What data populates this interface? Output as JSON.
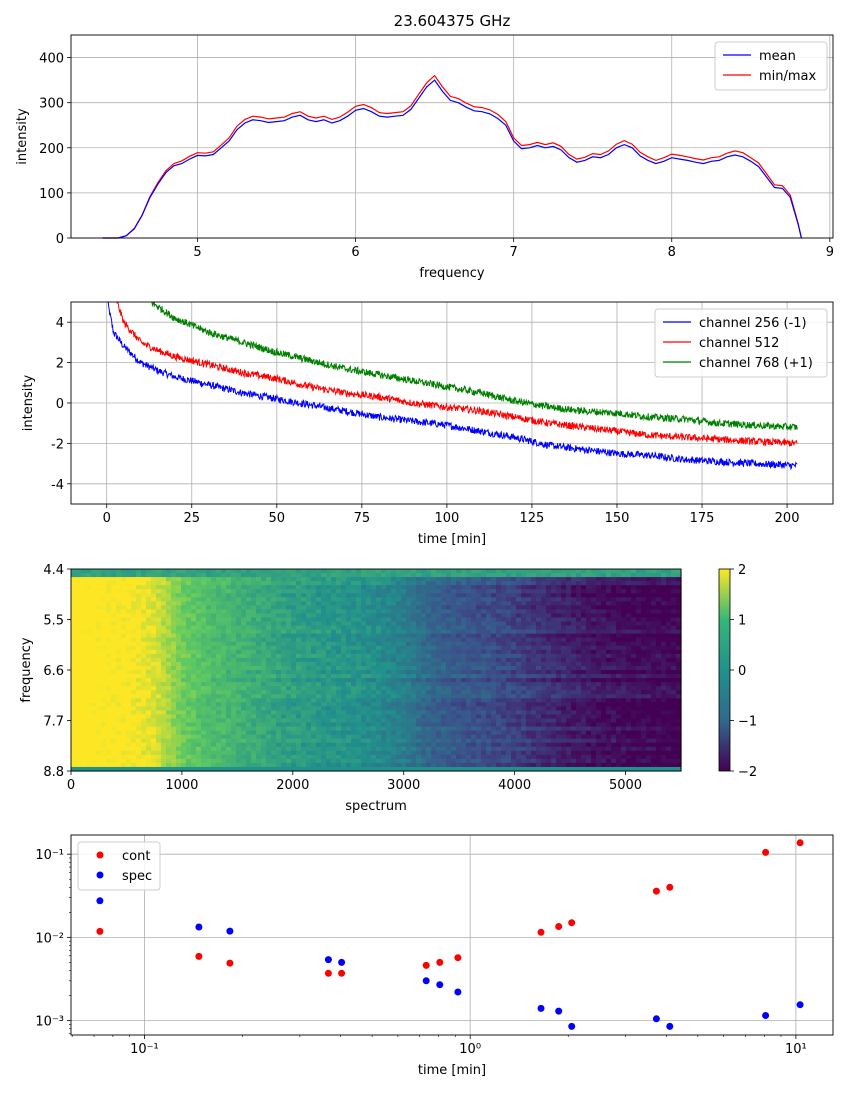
{
  "figure_title": "23.604375 GHz",
  "chart_data": [
    {
      "type": "line",
      "title": "23.604375 GHz",
      "xlabel": "frequency",
      "ylabel": "intensity",
      "xlim": [
        4.2,
        9.02
      ],
      "ylim": [
        0,
        450
      ],
      "xticks": [
        5,
        6,
        7,
        8,
        9
      ],
      "yticks": [
        0,
        100,
        200,
        300,
        400
      ],
      "grid": true,
      "legend_position": "top-right",
      "series": [
        {
          "name": "mean",
          "color": "#0000ff",
          "x": [
            4.4,
            4.5,
            4.55,
            4.6,
            4.65,
            4.7,
            4.75,
            4.8,
            4.85,
            4.9,
            4.95,
            5.0,
            5.05,
            5.1,
            5.15,
            5.2,
            5.25,
            5.3,
            5.35,
            5.4,
            5.45,
            5.5,
            5.55,
            5.6,
            5.65,
            5.7,
            5.75,
            5.8,
            5.85,
            5.9,
            5.95,
            6.0,
            6.05,
            6.1,
            6.15,
            6.2,
            6.25,
            6.3,
            6.35,
            6.4,
            6.45,
            6.5,
            6.55,
            6.6,
            6.65,
            6.7,
            6.75,
            6.8,
            6.85,
            6.9,
            6.95,
            7.0,
            7.05,
            7.1,
            7.15,
            7.2,
            7.25,
            7.3,
            7.35,
            7.4,
            7.45,
            7.5,
            7.55,
            7.6,
            7.65,
            7.7,
            7.75,
            7.8,
            7.85,
            7.9,
            7.95,
            8.0,
            8.05,
            8.1,
            8.15,
            8.2,
            8.25,
            8.3,
            8.35,
            8.4,
            8.45,
            8.5,
            8.55,
            8.6,
            8.65,
            8.7,
            8.75,
            8.8,
            8.82
          ],
          "values": [
            0,
            0,
            5,
            20,
            50,
            90,
            120,
            145,
            160,
            165,
            175,
            183,
            182,
            185,
            200,
            215,
            240,
            255,
            262,
            260,
            256,
            258,
            260,
            268,
            272,
            262,
            258,
            262,
            255,
            260,
            270,
            283,
            287,
            280,
            270,
            268,
            270,
            272,
            285,
            310,
            335,
            350,
            325,
            305,
            300,
            290,
            282,
            280,
            275,
            265,
            250,
            215,
            198,
            200,
            205,
            200,
            203,
            195,
            178,
            168,
            172,
            180,
            178,
            185,
            200,
            207,
            200,
            182,
            172,
            165,
            170,
            178,
            175,
            172,
            168,
            165,
            170,
            172,
            180,
            184,
            180,
            170,
            158,
            135,
            112,
            110,
            90,
            30,
            0
          ]
        },
        {
          "name": "min/max",
          "color": "#ff0000",
          "x": [
            4.4,
            4.5,
            4.55,
            4.6,
            4.65,
            4.7,
            4.75,
            4.8,
            4.85,
            4.9,
            4.95,
            5.0,
            5.05,
            5.1,
            5.15,
            5.2,
            5.25,
            5.3,
            5.35,
            5.4,
            5.45,
            5.5,
            5.55,
            5.6,
            5.65,
            5.7,
            5.75,
            5.8,
            5.85,
            5.9,
            5.95,
            6.0,
            6.05,
            6.1,
            6.15,
            6.2,
            6.25,
            6.3,
            6.35,
            6.4,
            6.45,
            6.5,
            6.55,
            6.6,
            6.65,
            6.7,
            6.75,
            6.8,
            6.85,
            6.9,
            6.95,
            7.0,
            7.05,
            7.1,
            7.15,
            7.2,
            7.25,
            7.3,
            7.35,
            7.4,
            7.45,
            7.5,
            7.55,
            7.6,
            7.65,
            7.7,
            7.75,
            7.8,
            7.85,
            7.9,
            7.95,
            8.0,
            8.05,
            8.1,
            8.15,
            8.2,
            8.25,
            8.3,
            8.35,
            8.4,
            8.45,
            8.5,
            8.55,
            8.6,
            8.65,
            8.7,
            8.75,
            8.8,
            8.82
          ],
          "values": [
            0,
            0,
            5,
            21,
            51,
            92,
            123,
            149,
            165,
            171,
            181,
            189,
            188,
            191,
            206,
            222,
            248,
            263,
            270,
            268,
            264,
            266,
            268,
            276,
            280,
            270,
            266,
            270,
            263,
            268,
            279,
            292,
            296,
            289,
            278,
            276,
            278,
            280,
            293,
            319,
            344,
            360,
            335,
            314,
            309,
            299,
            291,
            289,
            284,
            274,
            258,
            222,
            205,
            207,
            212,
            207,
            211,
            203,
            185,
            175,
            179,
            187,
            185,
            193,
            208,
            216,
            208,
            190,
            180,
            172,
            178,
            186,
            183,
            180,
            176,
            173,
            178,
            180,
            188,
            193,
            189,
            178,
            166,
            142,
            118,
            116,
            95,
            32,
            0
          ]
        }
      ]
    },
    {
      "type": "line",
      "xlabel": "time [min]",
      "ylabel": "intensity",
      "xlim": [
        -10.5,
        213.5
      ],
      "ylim": [
        -5,
        5
      ],
      "xticks": [
        0,
        25,
        50,
        75,
        100,
        125,
        150,
        175,
        200
      ],
      "yticks": [
        -4,
        -2,
        0,
        2,
        4
      ],
      "grid": true,
      "legend_position": "top-right",
      "noise_amplitude": 0.35,
      "series": [
        {
          "name": "channel 256 (-1)",
          "color": "#0000ff",
          "x": [
            0,
            2,
            5,
            10,
            15,
            20,
            30,
            40,
            50,
            60,
            70,
            80,
            90,
            100,
            110,
            120,
            130,
            140,
            150,
            160,
            170,
            180,
            190,
            203
          ],
          "values": [
            5.2,
            3.5,
            2.8,
            2.0,
            1.6,
            1.3,
            0.9,
            0.5,
            0.2,
            -0.1,
            -0.4,
            -0.7,
            -0.9,
            -1.1,
            -1.4,
            -1.7,
            -2.1,
            -2.3,
            -2.5,
            -2.6,
            -2.8,
            -2.9,
            -3.0,
            -3.1
          ]
        },
        {
          "name": "channel 512",
          "color": "#ff0000",
          "x": [
            3,
            5,
            10,
            15,
            20,
            30,
            40,
            50,
            60,
            70,
            80,
            90,
            100,
            110,
            120,
            130,
            140,
            150,
            160,
            170,
            180,
            190,
            203
          ],
          "values": [
            5.0,
            4.0,
            3.0,
            2.6,
            2.3,
            1.9,
            1.5,
            1.2,
            0.8,
            0.5,
            0.3,
            0.0,
            -0.2,
            -0.4,
            -0.7,
            -1.0,
            -1.2,
            -1.4,
            -1.6,
            -1.7,
            -1.8,
            -1.9,
            -2.0
          ]
        },
        {
          "name": "channel 768 (+1)",
          "color": "#008000",
          "x": [
            13,
            20,
            30,
            40,
            50,
            60,
            70,
            80,
            90,
            100,
            110,
            120,
            130,
            140,
            150,
            160,
            170,
            180,
            190,
            203
          ],
          "values": [
            5.0,
            4.2,
            3.5,
            3.0,
            2.5,
            2.1,
            1.7,
            1.4,
            1.1,
            0.8,
            0.5,
            0.1,
            -0.2,
            -0.4,
            -0.5,
            -0.7,
            -0.8,
            -1.0,
            -1.1,
            -1.2
          ]
        }
      ]
    },
    {
      "type": "heatmap",
      "xlabel": "spectrum",
      "ylabel": "frequency",
      "xlim": [
        0,
        5500
      ],
      "ylim": [
        8.8,
        4.4
      ],
      "xticks": [
        0,
        1000,
        2000,
        3000,
        4000,
        5000
      ],
      "yticks": [
        4.4,
        5.5,
        6.6,
        7.7,
        8.8
      ],
      "ytick_labels": [
        "4.4",
        "5.5",
        "6.6",
        "7.7",
        "8.8"
      ],
      "colormap": "viridis",
      "clim": [
        -2,
        2
      ],
      "colorbar_ticks": [
        2,
        1,
        0,
        -1,
        -2
      ],
      "colorbar_tick_labels": [
        "2",
        "1",
        "0",
        "−1",
        "−2"
      ],
      "colorbar_colors": [
        "#fde725",
        "#35b779",
        "#21918c",
        "#31688e",
        "#440154"
      ],
      "x_values": [
        0,
        250,
        500,
        750,
        1000,
        1250,
        1500,
        1750,
        2000,
        2250,
        2500,
        2750,
        3000,
        3250,
        3500,
        3750,
        4000,
        4250,
        4500,
        4750,
        5000,
        5250,
        5500
      ],
      "column_values": [
        2.2,
        2.1,
        2.05,
        1.8,
        1.1,
        0.8,
        0.6,
        0.4,
        0.25,
        0.15,
        0.05,
        -0.05,
        -0.3,
        -0.7,
        -0.9,
        -1.0,
        -1.2,
        -1.4,
        -1.6,
        -1.75,
        -1.85,
        -1.9,
        -1.95
      ],
      "edge_band_value": 0.3
    },
    {
      "type": "scatter",
      "xlabel": "time [min]",
      "xscale": "log",
      "yscale": "log",
      "xlim": [
        0.0595,
        13.0
      ],
      "ylim": [
        0.00067,
        0.17
      ],
      "xticks": [
        0.1,
        1,
        10
      ],
      "xtick_labels": [
        "10⁻¹",
        "10⁰",
        "10¹"
      ],
      "yticks": [
        0.001,
        0.01,
        0.1
      ],
      "ytick_labels": [
        "10⁻³",
        "10⁻²",
        "10⁻¹"
      ],
      "grid": true,
      "legend_position": "top-left",
      "series": [
        {
          "name": "cont",
          "color": "#ff0000",
          "x": [
            0.073,
            0.147,
            0.183,
            0.367,
            0.403,
            0.733,
            0.807,
            0.917,
            1.65,
            1.87,
            2.05,
            3.73,
            4.1,
            8.07,
            10.3
          ],
          "values": [
            0.0118,
            0.0059,
            0.0049,
            0.0037,
            0.0037,
            0.0046,
            0.005,
            0.0057,
            0.0115,
            0.0135,
            0.015,
            0.036,
            0.04,
            0.105,
            0.137
          ]
        },
        {
          "name": "spec",
          "color": "#0000ff",
          "x": [
            0.073,
            0.147,
            0.183,
            0.367,
            0.403,
            0.733,
            0.807,
            0.917,
            1.65,
            1.87,
            2.05,
            3.73,
            4.1,
            8.07,
            10.3
          ],
          "values": [
            0.0275,
            0.0133,
            0.0119,
            0.0054,
            0.005,
            0.003,
            0.0027,
            0.0022,
            0.0014,
            0.0013,
            0.00085,
            0.00105,
            0.00085,
            0.00115,
            0.00155
          ]
        }
      ]
    }
  ]
}
